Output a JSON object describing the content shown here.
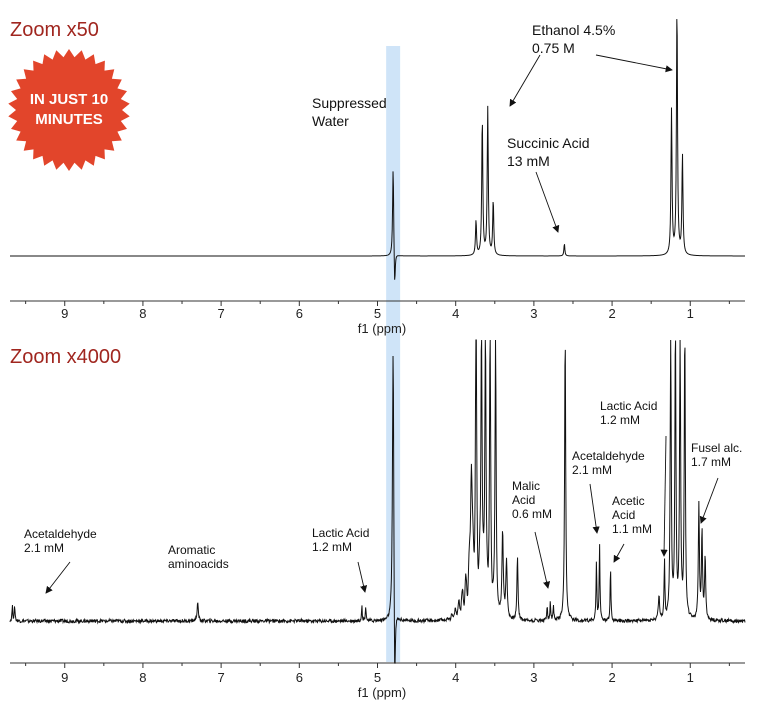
{
  "badge": {
    "line1": "IN JUST 10",
    "line2": "MINUTES",
    "color": "#e2452b"
  },
  "water_band_color": "#cfe4f8",
  "chart_data": [
    {
      "type": "line",
      "panel": "top",
      "title": "Zoom x50",
      "xlabel": "f1 (ppm)",
      "x_reversed": true,
      "xlim": [
        9.7,
        0.3
      ],
      "xticks": [
        "9",
        "8",
        "7",
        "6",
        "5",
        "4",
        "3",
        "2",
        "1"
      ],
      "grid": false,
      "peaks": [
        {
          "x": 4.8,
          "h": 0.37,
          "neg": 0.15,
          "w": 0.008
        },
        {
          "x": 3.74,
          "h": 0.14,
          "w": 0.008
        },
        {
          "x": 3.66,
          "h": 0.55,
          "w": 0.008
        },
        {
          "x": 3.59,
          "h": 0.59,
          "w": 0.008
        },
        {
          "x": 3.52,
          "h": 0.22,
          "w": 0.008
        },
        {
          "x": 2.61,
          "h": 0.05,
          "w": 0.007
        },
        {
          "x": 1.24,
          "h": 0.58,
          "w": 0.008
        },
        {
          "x": 1.17,
          "h": 1.0,
          "w": 0.008
        },
        {
          "x": 1.1,
          "h": 0.4,
          "w": 0.008
        }
      ],
      "annotations": [
        {
          "lines": [
            "Suppressed",
            "Water"
          ],
          "x": 4.8
        },
        {
          "lines": [
            "Ethanol 4.5%",
            "0.75 M"
          ],
          "x": 1.17
        },
        {
          "lines": [
            "Succinic Acid",
            "13 mM"
          ],
          "x": 2.61
        }
      ]
    },
    {
      "type": "line",
      "panel": "bottom",
      "title": "Zoom x4000",
      "xlabel": "f1 (ppm)",
      "x_reversed": true,
      "xlim": [
        9.7,
        0.3
      ],
      "xticks": [
        "9",
        "8",
        "7",
        "6",
        "5",
        "4",
        "3",
        "2",
        "1"
      ],
      "grid": false,
      "peaks": [
        {
          "x": 9.67,
          "h": 0.05,
          "w": 0.006
        },
        {
          "x": 9.64,
          "h": 0.05,
          "w": 0.006
        },
        {
          "x": 7.3,
          "h": 0.06,
          "w": 0.01
        },
        {
          "x": 5.2,
          "h": 0.05,
          "w": 0.006
        },
        {
          "x": 5.15,
          "h": 0.05,
          "w": 0.006
        },
        {
          "x": 4.8,
          "h": 1.0,
          "neg": 0.35,
          "w": 0.01
        },
        {
          "x": 3.8,
          "h": 0.45,
          "w": 0.012
        },
        {
          "x": 3.74,
          "h": 1.0,
          "w": 0.008
        },
        {
          "x": 3.67,
          "h": 1.0,
          "w": 0.008
        },
        {
          "x": 3.62,
          "h": 1.0,
          "w": 0.008
        },
        {
          "x": 3.56,
          "h": 1.0,
          "w": 0.008
        },
        {
          "x": 3.49,
          "h": 1.0,
          "w": 0.008
        },
        {
          "x": 3.4,
          "h": 0.3,
          "w": 0.01
        },
        {
          "x": 3.35,
          "h": 0.2,
          "w": 0.01
        },
        {
          "x": 3.21,
          "h": 0.22,
          "w": 0.008
        },
        {
          "x": 2.83,
          "h": 0.05,
          "w": 0.006
        },
        {
          "x": 2.79,
          "h": 0.06,
          "w": 0.006
        },
        {
          "x": 2.75,
          "h": 0.05,
          "w": 0.006
        },
        {
          "x": 2.6,
          "h": 1.0,
          "w": 0.008
        },
        {
          "x": 2.2,
          "h": 0.2,
          "w": 0.006
        },
        {
          "x": 2.16,
          "h": 0.26,
          "w": 0.006
        },
        {
          "x": 2.02,
          "h": 0.18,
          "w": 0.006
        },
        {
          "x": 1.4,
          "h": 0.08,
          "w": 0.01
        },
        {
          "x": 1.33,
          "h": 0.2,
          "w": 0.006
        },
        {
          "x": 1.25,
          "h": 1.0,
          "w": 0.008
        },
        {
          "x": 1.19,
          "h": 1.0,
          "w": 0.008
        },
        {
          "x": 1.13,
          "h": 1.0,
          "w": 0.008
        },
        {
          "x": 1.07,
          "h": 1.0,
          "w": 0.008
        },
        {
          "x": 0.89,
          "h": 0.4,
          "w": 0.008
        },
        {
          "x": 0.85,
          "h": 0.3,
          "w": 0.008
        },
        {
          "x": 0.81,
          "h": 0.22,
          "w": 0.008
        }
      ],
      "annotations": [
        {
          "lines": [
            "Acetaldehyde",
            "2.1 mM"
          ],
          "x": 9.65
        },
        {
          "lines": [
            "Aromatic",
            "aminoacids"
          ],
          "x": 7.3
        },
        {
          "lines": [
            "Lactic Acid",
            "1.2 mM"
          ],
          "x": 5.18
        },
        {
          "lines": [
            "Malic",
            "Acid",
            "0.6 mM"
          ],
          "x": 2.79
        },
        {
          "lines": [
            "Acetaldehyde",
            "2.1 mM"
          ],
          "x": 2.18
        },
        {
          "lines": [
            "Acetic",
            "Acid",
            "1.1 mM"
          ],
          "x": 2.02
        },
        {
          "lines": [
            "Lactic Acid",
            "1.2 mM"
          ],
          "x": 1.33
        },
        {
          "lines": [
            "Fusel alc.",
            "1.7 mM"
          ],
          "x": 0.86
        }
      ]
    }
  ]
}
